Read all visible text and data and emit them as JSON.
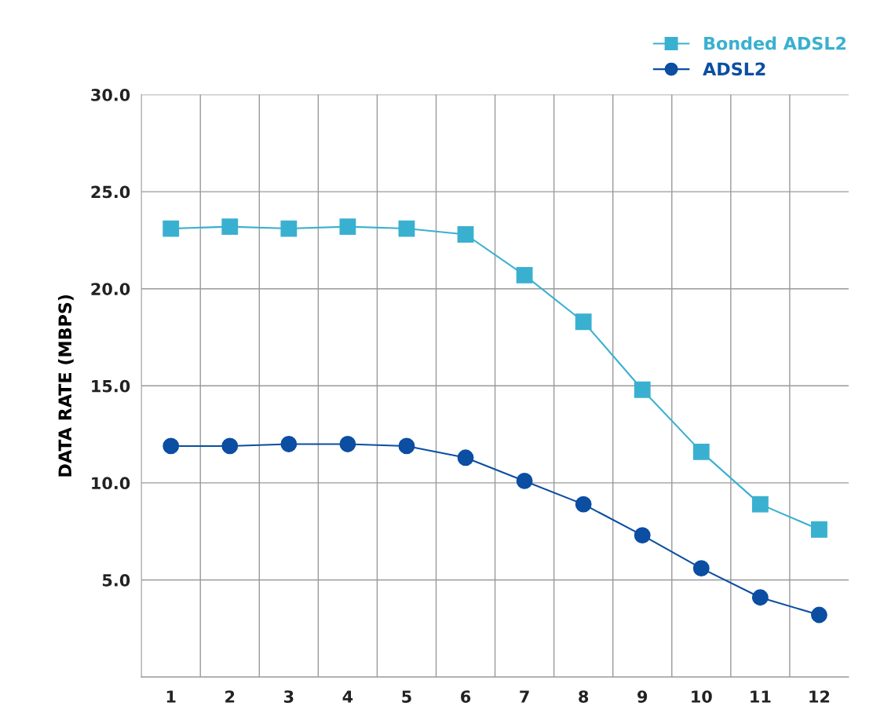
{
  "chart_data": {
    "type": "line",
    "ylabel": "DATA RATE (MBPS)",
    "categories": [
      "1",
      "2",
      "3",
      "4",
      "5",
      "6",
      "7",
      "8",
      "9",
      "10",
      "11",
      "12"
    ],
    "series": [
      {
        "name": "Bonded ADSL2",
        "color": "#3ab0d0",
        "marker": "square",
        "values": [
          23.1,
          23.2,
          23.1,
          23.2,
          23.1,
          22.8,
          20.7,
          18.3,
          14.8,
          11.6,
          8.9,
          7.6
        ]
      },
      {
        "name": "ADSL2",
        "color": "#0b4ea2",
        "marker": "circle",
        "values": [
          11.9,
          11.9,
          12.0,
          12.0,
          11.9,
          11.3,
          10.1,
          8.9,
          7.3,
          5.6,
          4.1,
          3.2
        ]
      }
    ],
    "ylim": [
      0,
      30
    ],
    "yticks": [
      {
        "value": 0,
        "label": null
      },
      {
        "value": 5,
        "label": "5.0"
      },
      {
        "value": 10,
        "label": "10.0"
      },
      {
        "value": 15,
        "label": "15.0"
      },
      {
        "value": 20,
        "label": "20.0"
      },
      {
        "value": 25,
        "label": "25.0"
      },
      {
        "value": 30,
        "label": "30.0"
      }
    ],
    "grid": true,
    "legend": "top right",
    "line_style": "solid"
  }
}
